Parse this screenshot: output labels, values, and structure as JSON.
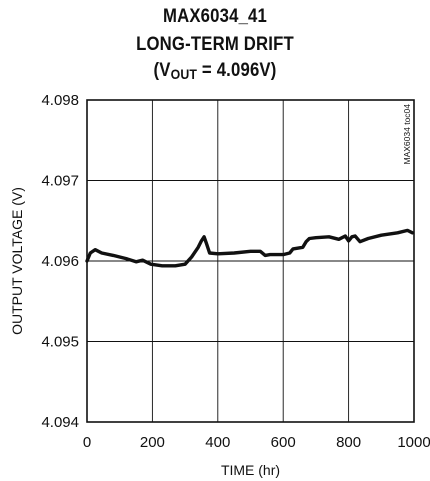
{
  "title": {
    "line1": "MAX6034_41",
    "line2": "LONG-TERM DRIFT",
    "line3_prefix": "(V",
    "line3_sub": "OUT",
    "line3_suffix": " = 4.096V)"
  },
  "chart_data": {
    "type": "line",
    "title": "MAX6034_41 LONG-TERM DRIFT (VOUT = 4.096V)",
    "xlabel": "TIME (hr)",
    "ylabel": "OUTPUT VOLTAGE (V)",
    "xlim": [
      0,
      1000
    ],
    "ylim": [
      4.094,
      4.098
    ],
    "x_ticks": [
      0,
      200,
      400,
      600,
      800,
      1000
    ],
    "x_tick_labels": [
      "0",
      "200",
      "400",
      "600",
      "800",
      "1000"
    ],
    "y_ticks": [
      4.094,
      4.095,
      4.096,
      4.097,
      4.098
    ],
    "y_tick_labels": [
      "4.094",
      "4.095",
      "4.096",
      "4.097",
      "4.098"
    ],
    "grid": true,
    "annotation": "MAX6034 toc04",
    "series": [
      {
        "x": [
          0,
          10,
          25,
          45,
          80,
          120,
          150,
          170,
          195,
          230,
          270,
          300,
          320,
          340,
          350,
          358,
          365,
          375,
          400,
          450,
          500,
          530,
          545,
          560,
          600,
          620,
          630,
          660,
          670,
          680,
          700,
          740,
          770,
          790,
          800,
          810,
          820,
          835,
          860,
          900,
          950,
          980,
          995
        ],
        "y": [
          4.096,
          4.0961,
          4.09614,
          4.0961,
          4.09607,
          4.09603,
          4.09599,
          4.09601,
          4.09596,
          4.09594,
          4.09594,
          4.09596,
          4.09605,
          4.09617,
          4.09625,
          4.0963,
          4.09622,
          4.0961,
          4.09609,
          4.0961,
          4.09612,
          4.09612,
          4.09607,
          4.09608,
          4.09608,
          4.0961,
          4.09615,
          4.09617,
          4.09624,
          4.09628,
          4.09629,
          4.0963,
          4.09627,
          4.09631,
          4.09625,
          4.0963,
          4.09631,
          4.09624,
          4.09628,
          4.09632,
          4.09635,
          4.09638,
          4.09635
        ]
      }
    ]
  }
}
